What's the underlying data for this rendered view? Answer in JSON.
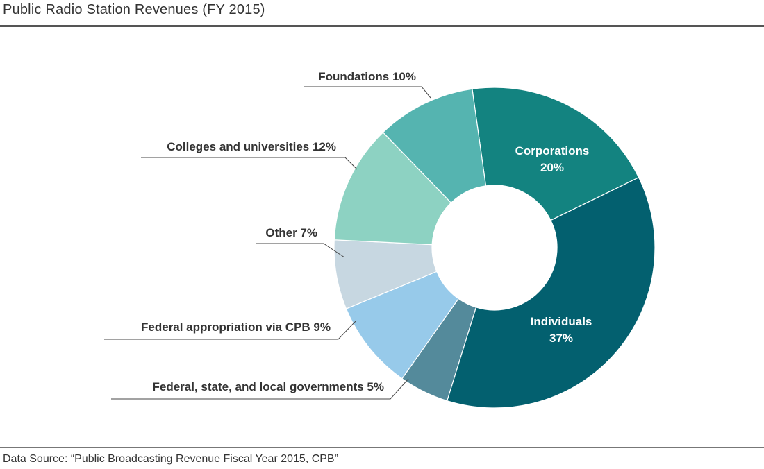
{
  "title": "Public Radio Station Revenues (FY 2015)",
  "source": "Data Source: “Public Broadcasting Revenue Fiscal Year 2015, CPB”",
  "chart_data": {
    "type": "pie",
    "variant": "donut",
    "title": "Public Radio Station Revenues (FY 2015)",
    "unit": "%",
    "slices": [
      {
        "name": "Corporations",
        "value": 20,
        "label": "Corporations",
        "value_label": "20%",
        "color": "#138380",
        "label_position": "inside"
      },
      {
        "name": "Individuals",
        "value": 37,
        "label": "Individuals",
        "value_label": "37%",
        "color": "#03606f",
        "label_position": "inside"
      },
      {
        "name": "Federal, state, and local governments",
        "value": 5,
        "label": "Federal, state, and local governments 5%",
        "color": "#548a9b",
        "label_position": "outside"
      },
      {
        "name": "Federal appropriation via CPB",
        "value": 9,
        "label": "Federal appropriation via CPB 9%",
        "color": "#97caea",
        "label_position": "outside"
      },
      {
        "name": "Other",
        "value": 7,
        "label": "Other 7%",
        "color": "#c7d7e1",
        "label_position": "outside"
      },
      {
        "name": "Colleges and universities",
        "value": 12,
        "label": "Colleges and universities 12%",
        "color": "#8dd2c2",
        "label_position": "outside"
      },
      {
        "name": "Foundations",
        "value": 10,
        "label": "Foundations 10%",
        "color": "#55b4b0",
        "label_position": "outside"
      }
    ]
  }
}
